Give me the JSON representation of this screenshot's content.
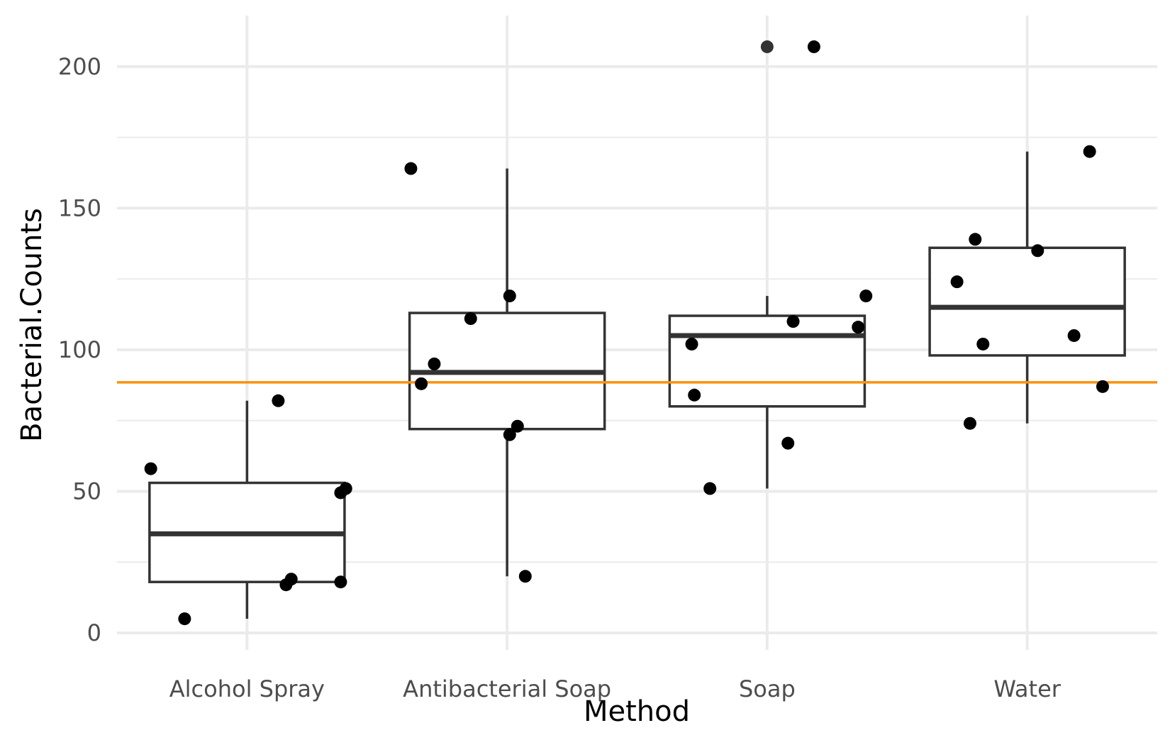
{
  "chart_data": {
    "type": "box",
    "xlabel": "Method",
    "ylabel": "Bacterial.Counts",
    "ylim": [
      -6,
      218
    ],
    "y_ticks": [
      0,
      50,
      100,
      150,
      200
    ],
    "y_minor_ticks": [
      25,
      75,
      125,
      175
    ],
    "grid": true,
    "reference_line": {
      "y": 88.5,
      "color": "#f7930f"
    },
    "categories": [
      "Alcohol Spray",
      "Antibacterial Soap",
      "Soap",
      "Water"
    ],
    "boxes": [
      {
        "category": "Alcohol Spray",
        "q1": 18,
        "median": 35,
        "q3": 53,
        "whisker_low": 5,
        "whisker_high": 82
      },
      {
        "category": "Antibacterial Soap",
        "q1": 72,
        "median": 92,
        "q3": 113,
        "whisker_low": 20,
        "whisker_high": 164
      },
      {
        "category": "Soap",
        "q1": 80,
        "median": 105,
        "q3": 112,
        "whisker_low": 51,
        "whisker_high": 119
      },
      {
        "category": "Water",
        "q1": 98,
        "median": 115,
        "q3": 136,
        "whisker_low": 74,
        "whisker_high": 170
      }
    ],
    "outliers": [
      {
        "category": "Soap",
        "value": 207
      }
    ],
    "points": [
      {
        "category": "Alcohol Spray",
        "jitter": -0.37,
        "value": 58
      },
      {
        "category": "Alcohol Spray",
        "jitter": -0.24,
        "value": 5
      },
      {
        "category": "Alcohol Spray",
        "jitter": 0.12,
        "value": 82
      },
      {
        "category": "Alcohol Spray",
        "jitter": 0.15,
        "value": 17
      },
      {
        "category": "Alcohol Spray",
        "jitter": 0.17,
        "value": 19
      },
      {
        "category": "Alcohol Spray",
        "jitter": 0.36,
        "value": 18
      },
      {
        "category": "Alcohol Spray",
        "jitter": 0.36,
        "value": 49.5
      },
      {
        "category": "Alcohol Spray",
        "jitter": 0.38,
        "value": 51
      },
      {
        "category": "Antibacterial Soap",
        "jitter": -0.37,
        "value": 164
      },
      {
        "category": "Antibacterial Soap",
        "jitter": -0.33,
        "value": 88
      },
      {
        "category": "Antibacterial Soap",
        "jitter": -0.28,
        "value": 95
      },
      {
        "category": "Antibacterial Soap",
        "jitter": -0.14,
        "value": 111
      },
      {
        "category": "Antibacterial Soap",
        "jitter": 0.01,
        "value": 70
      },
      {
        "category": "Antibacterial Soap",
        "jitter": 0.01,
        "value": 119
      },
      {
        "category": "Antibacterial Soap",
        "jitter": 0.04,
        "value": 73
      },
      {
        "category": "Antibacterial Soap",
        "jitter": 0.07,
        "value": 20
      },
      {
        "category": "Soap",
        "jitter": -0.29,
        "value": 102
      },
      {
        "category": "Soap",
        "jitter": -0.28,
        "value": 84
      },
      {
        "category": "Soap",
        "jitter": -0.22,
        "value": 51
      },
      {
        "category": "Soap",
        "jitter": 0.08,
        "value": 67
      },
      {
        "category": "Soap",
        "jitter": 0.1,
        "value": 110
      },
      {
        "category": "Soap",
        "jitter": 0.18,
        "value": 207
      },
      {
        "category": "Soap",
        "jitter": 0.35,
        "value": 108
      },
      {
        "category": "Soap",
        "jitter": 0.38,
        "value": 119
      },
      {
        "category": "Water",
        "jitter": -0.27,
        "value": 124
      },
      {
        "category": "Water",
        "jitter": -0.22,
        "value": 74
      },
      {
        "category": "Water",
        "jitter": -0.2,
        "value": 139
      },
      {
        "category": "Water",
        "jitter": -0.17,
        "value": 102
      },
      {
        "category": "Water",
        "jitter": 0.04,
        "value": 135
      },
      {
        "category": "Water",
        "jitter": 0.18,
        "value": 105
      },
      {
        "category": "Water",
        "jitter": 0.24,
        "value": 170
      },
      {
        "category": "Water",
        "jitter": 0.29,
        "value": 87
      }
    ],
    "colors": {
      "grid": "#ebebeb",
      "box_stroke": "#333333",
      "point": "#000000",
      "reference_line": "#f7930f"
    }
  }
}
